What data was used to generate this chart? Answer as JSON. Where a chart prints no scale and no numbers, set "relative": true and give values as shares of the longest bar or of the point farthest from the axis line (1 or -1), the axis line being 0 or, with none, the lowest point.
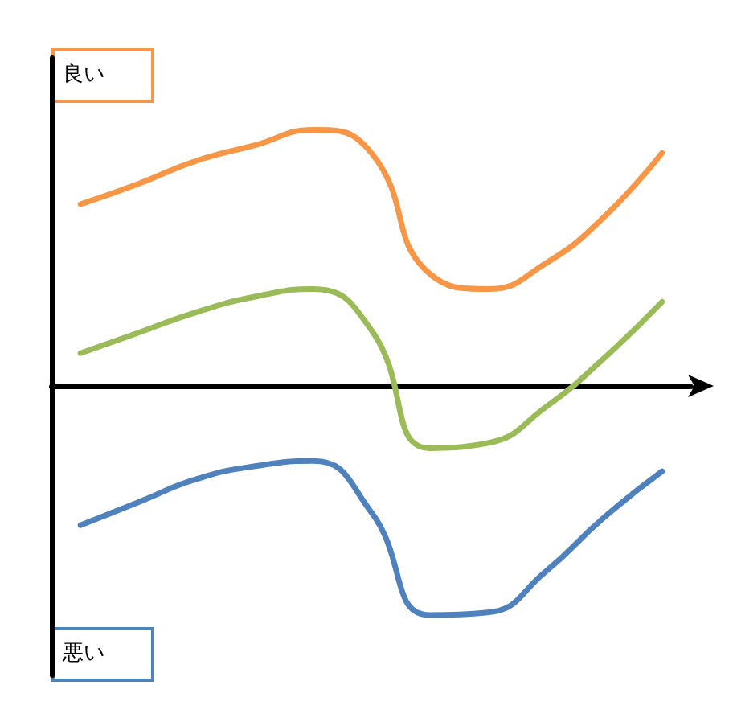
{
  "chart_data": {
    "type": "line",
    "relative": true,
    "categories": [
      null,
      null,
      null,
      null,
      null,
      null,
      null,
      null,
      null,
      null,
      null
    ],
    "series": [
      {
        "color": "#f79646",
        "values": [
          0.71,
          0.79,
          0.88,
          0.94,
          1.0,
          0.91,
          0.44,
          0.38,
          0.48,
          0.66,
          0.91
        ]
      },
      {
        "color": "#9bbb59",
        "values": [
          0.13,
          0.21,
          0.29,
          0.35,
          0.38,
          0.22,
          -0.24,
          -0.22,
          -0.08,
          0.11,
          0.33
        ]
      },
      {
        "color": "#4f81bd",
        "values": [
          -0.54,
          -0.45,
          -0.36,
          -0.31,
          -0.29,
          -0.49,
          -0.89,
          -0.88,
          -0.72,
          -0.51,
          -0.33
        ]
      }
    ],
    "annotations": [
      "良い",
      "悪い"
    ],
    "marker": "none",
    "line_style": "solid",
    "grid": false
  }
}
